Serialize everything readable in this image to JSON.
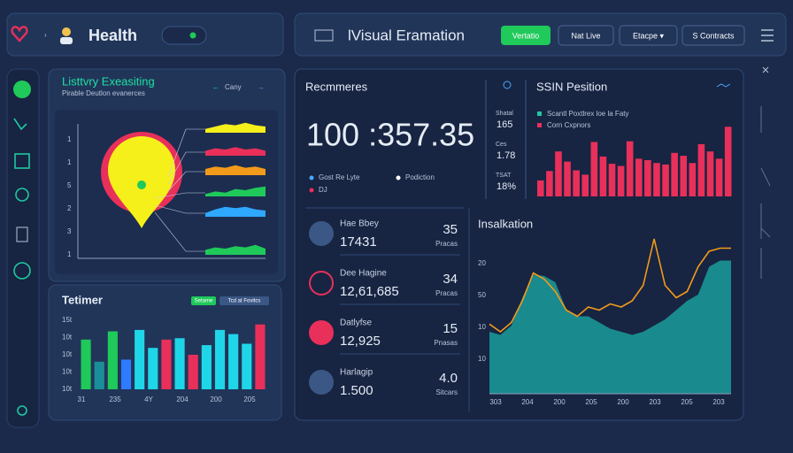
{
  "header": {
    "app": "Health",
    "title": "lVisual Eramation",
    "buttons": [
      "Vertatio",
      "Nat Live",
      "Etacpe ▾",
      "S Contracts"
    ]
  },
  "left_panel": {
    "title": "Listtvry Exeasiting",
    "subtitle": "Pirable Deutlon evanerces",
    "nav": "Cany",
    "axis_labels": [
      "1",
      "1",
      "5",
      "2",
      "3",
      "1"
    ],
    "ylim": [
      0,
      10
    ],
    "sparklines": [
      {
        "color": "#f5f01a",
        "values": [
          3,
          5,
          7,
          6,
          8,
          6,
          5
        ]
      },
      {
        "color": "#e8305a",
        "values": [
          4,
          6,
          5,
          7,
          5,
          6,
          4
        ]
      },
      {
        "color": "#f29a1a",
        "values": [
          5,
          7,
          6,
          8,
          6,
          7,
          5
        ]
      },
      {
        "color": "#1fc95a",
        "values": [
          2,
          4,
          3,
          6,
          5,
          7,
          8
        ]
      },
      {
        "color": "#2fa8ff",
        "values": [
          3,
          6,
          8,
          7,
          8,
          6,
          5
        ]
      },
      {
        "color": "#1fc95a",
        "values": [
          4,
          6,
          5,
          7,
          6,
          8,
          5
        ]
      }
    ]
  },
  "bar_panel": {
    "title": "Tetimer",
    "badges": [
      "Setame",
      "Tcd at Fovitcs"
    ],
    "y_labels": [
      "15t",
      "10t",
      "10t",
      "10t",
      "10t"
    ],
    "x_labels": [
      "31",
      "235",
      "4Y",
      "204",
      "200",
      "205"
    ],
    "ylim": [
      0,
      100
    ],
    "bars": [
      {
        "value": 72,
        "color": "#1fc95a"
      },
      {
        "value": 40,
        "color": "#1a8f9a"
      },
      {
        "value": 84,
        "color": "#1fc95a"
      },
      {
        "value": 43,
        "color": "#2f7bff"
      },
      {
        "value": 86,
        "color": "#1fd6e8"
      },
      {
        "value": 60,
        "color": "#1fd6e8"
      },
      {
        "value": 72,
        "color": "#e8305a"
      },
      {
        "value": 74,
        "color": "#1fd6e8"
      },
      {
        "value": 50,
        "color": "#e8305a"
      },
      {
        "value": 64,
        "color": "#1fd6e8"
      },
      {
        "value": 86,
        "color": "#1fd6e8"
      },
      {
        "value": 80,
        "color": "#1fd6e8"
      },
      {
        "value": 66,
        "color": "#1fd6e8"
      },
      {
        "value": 94,
        "color": "#e8305a"
      }
    ]
  },
  "summary": {
    "title": "Recmmeres",
    "value": "100 :357.35",
    "legend": [
      "Gost Re Lyte",
      "Podiction",
      "DJ"
    ]
  },
  "stats": [
    {
      "label": "Shatal",
      "value": "165"
    },
    {
      "label": "Ces",
      "value": "1.78"
    },
    {
      "label": "TSAT",
      "value": "18%"
    }
  ],
  "position": {
    "title": "SSIN Pesition",
    "legend": [
      {
        "name": "Scantl Poxtlrex loe la Faty",
        "color": "#1fc9a0"
      },
      {
        "name": "Corn Cxpnors",
        "color": "#e8305a"
      }
    ],
    "color": "#e8305a",
    "ylim": [
      0,
      100
    ],
    "values": [
      22,
      35,
      62,
      48,
      36,
      30,
      75,
      55,
      45,
      42,
      76,
      52,
      50,
      46,
      44,
      60,
      56,
      46,
      72,
      62,
      52,
      96
    ]
  },
  "list": [
    {
      "label": "Hae Bbey",
      "value": "17431",
      "number": "35",
      "unit": "Pracas"
    },
    {
      "label": "Dee Hagine",
      "value": "12,61,685",
      "number": "34",
      "unit": "Pracas"
    },
    {
      "label": "Datlyfse",
      "value": "12,925",
      "number": "15",
      "unit": "Pnasas"
    },
    {
      "label": "Harlagip",
      "value": "1.500",
      "number": "4.0",
      "unit": "Sitcars"
    }
  ],
  "insight": {
    "title": "Insalkation",
    "y_labels": [
      "20",
      "50",
      "10",
      "10"
    ],
    "x_labels": [
      "303",
      "204",
      "200",
      "205",
      "200",
      "203",
      "205",
      "203"
    ],
    "ylim": [
      0,
      100
    ],
    "area": [
      40,
      38,
      44,
      62,
      77,
      76,
      72,
      54,
      50,
      50,
      46,
      42,
      40,
      38,
      40,
      44,
      48,
      54,
      60,
      64,
      82,
      86,
      86
    ],
    "line": [
      45,
      40,
      46,
      60,
      78,
      74,
      66,
      54,
      50,
      56,
      54,
      58,
      56,
      60,
      70,
      100,
      70,
      62,
      66,
      82,
      92,
      94,
      94
    ]
  }
}
